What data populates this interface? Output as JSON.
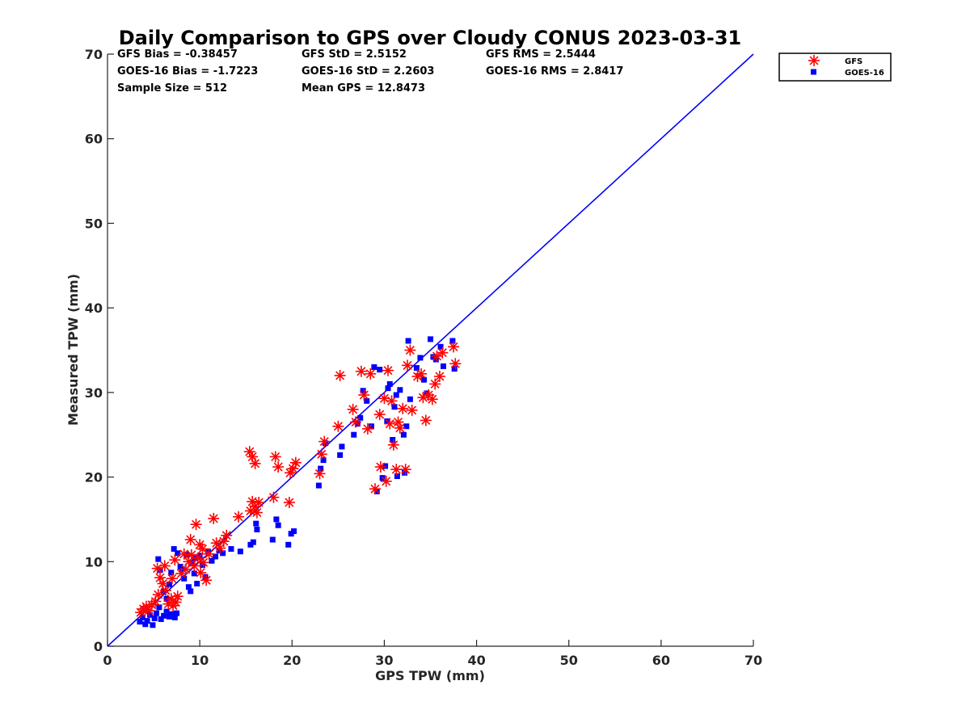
{
  "chart_data": {
    "type": "scatter",
    "title": "Daily Comparison to GPS over Cloudy CONUS 2023-03-31",
    "xlabel": "GPS TPW (mm)",
    "ylabel": "Measured TPW (mm)",
    "xlim": [
      0,
      70
    ],
    "ylim": [
      0,
      70
    ],
    "xticks": [
      "0",
      "10",
      "20",
      "30",
      "40",
      "50",
      "60",
      "70"
    ],
    "yticks": [
      "0",
      "10",
      "20",
      "30",
      "40",
      "50",
      "60",
      "70"
    ],
    "grid": false,
    "legend_position": "outside-top-right",
    "stats": {
      "gfs_bias": "GFS Bias = -0.38457",
      "gfs_std": "GFS StD = 2.5152",
      "gfs_rms": "GFS RMS = 2.5444",
      "goes_bias": "GOES-16 Bias = -1.7223",
      "goes_std": "GOES-16 StD = 2.2603",
      "goes_rms": "GOES-16 RMS = 2.8417",
      "sample_size": "Sample Size = 512",
      "mean_gps": "Mean GPS = 12.8473"
    },
    "reference_line": {
      "x": [
        0,
        70
      ],
      "y": [
        0,
        70
      ],
      "color": "#0000ff"
    },
    "series": [
      {
        "name": "GFS",
        "marker": "asterisk",
        "color": "#ff0000",
        "points": [
          [
            3.6,
            4.0
          ],
          [
            3.9,
            4.4
          ],
          [
            4.2,
            4.7
          ],
          [
            4.5,
            4.2
          ],
          [
            4.8,
            4.9
          ],
          [
            5.2,
            5.3
          ],
          [
            5.5,
            6.1
          ],
          [
            5.7,
            8.1
          ],
          [
            6.0,
            7.4
          ],
          [
            6.3,
            6.6
          ],
          [
            6.6,
            5.0
          ],
          [
            6.9,
            5.6
          ],
          [
            7.1,
            4.8
          ],
          [
            7.4,
            5.2
          ],
          [
            7.6,
            5.9
          ],
          [
            7.0,
            8.0
          ],
          [
            7.3,
            10.2
          ],
          [
            5.4,
            9.2
          ],
          [
            6.2,
            9.5
          ],
          [
            8.0,
            8.6
          ],
          [
            8.5,
            9.1
          ],
          [
            8.8,
            10.0
          ],
          [
            9.1,
            10.8
          ],
          [
            9.4,
            9.5
          ],
          [
            9.8,
            10.4
          ],
          [
            10.1,
            8.7
          ],
          [
            10.4,
            9.9
          ],
          [
            10.7,
            7.8
          ],
          [
            8.3,
            10.9
          ],
          [
            9.0,
            12.6
          ],
          [
            9.6,
            14.4
          ],
          [
            10.3,
            11.5
          ],
          [
            11.0,
            10.9
          ],
          [
            11.5,
            15.1
          ],
          [
            11.8,
            12.2
          ],
          [
            12.2,
            11.6
          ],
          [
            12.6,
            12.4
          ],
          [
            12.9,
            13.1
          ],
          [
            14.2,
            15.3
          ],
          [
            15.5,
            16.0
          ],
          [
            15.7,
            17.1
          ],
          [
            16.0,
            16.5
          ],
          [
            16.2,
            15.8
          ],
          [
            16.4,
            17.0
          ],
          [
            15.4,
            23.0
          ],
          [
            15.7,
            22.4
          ],
          [
            16.0,
            21.6
          ],
          [
            18.0,
            17.6
          ],
          [
            18.2,
            22.4
          ],
          [
            18.5,
            21.2
          ],
          [
            19.7,
            17.0
          ],
          [
            19.8,
            20.5
          ],
          [
            20.1,
            21.0
          ],
          [
            20.4,
            21.7
          ],
          [
            23.0,
            20.4
          ],
          [
            23.2,
            22.7
          ],
          [
            23.5,
            24.2
          ],
          [
            25.0,
            26.0
          ],
          [
            26.6,
            28.0
          ],
          [
            26.9,
            26.5
          ],
          [
            27.5,
            32.5
          ],
          [
            27.8,
            29.7
          ],
          [
            28.2,
            25.7
          ],
          [
            28.5,
            32.2
          ],
          [
            29.0,
            18.6
          ],
          [
            29.6,
            21.2
          ],
          [
            29.5,
            27.4
          ],
          [
            30.0,
            29.3
          ],
          [
            30.2,
            19.5
          ],
          [
            30.4,
            32.6
          ],
          [
            30.6,
            26.3
          ],
          [
            30.8,
            29.0
          ],
          [
            31.0,
            23.8
          ],
          [
            31.3,
            20.9
          ],
          [
            31.5,
            26.5
          ],
          [
            31.7,
            25.8
          ],
          [
            32.0,
            28.1
          ],
          [
            32.3,
            20.9
          ],
          [
            32.5,
            33.2
          ],
          [
            32.8,
            35.0
          ],
          [
            33.0,
            27.9
          ],
          [
            33.6,
            31.9
          ],
          [
            34.0,
            32.2
          ],
          [
            34.2,
            29.4
          ],
          [
            34.5,
            26.7
          ],
          [
            34.8,
            29.7
          ],
          [
            35.2,
            29.2
          ],
          [
            35.5,
            31.0
          ],
          [
            35.7,
            34.3
          ],
          [
            36.0,
            31.9
          ],
          [
            36.3,
            34.7
          ],
          [
            37.5,
            35.4
          ],
          [
            37.7,
            33.4
          ],
          [
            25.2,
            32.0
          ],
          [
            10.0,
            12.0
          ]
        ]
      },
      {
        "name": "GOES-16",
        "marker": "square",
        "color": "#0000ff",
        "points": [
          [
            3.5,
            2.9
          ],
          [
            3.8,
            3.4
          ],
          [
            4.1,
            2.6
          ],
          [
            4.3,
            3.0
          ],
          [
            4.6,
            3.7
          ],
          [
            4.9,
            2.5
          ],
          [
            5.1,
            3.3
          ],
          [
            5.3,
            3.9
          ],
          [
            5.6,
            4.6
          ],
          [
            5.8,
            3.2
          ],
          [
            6.1,
            3.6
          ],
          [
            6.4,
            4.1
          ],
          [
            6.7,
            3.5
          ],
          [
            7.0,
            3.8
          ],
          [
            7.3,
            3.4
          ],
          [
            7.5,
            3.9
          ],
          [
            5.5,
            10.3
          ],
          [
            5.7,
            9.0
          ],
          [
            6.1,
            6.5
          ],
          [
            6.4,
            5.6
          ],
          [
            6.7,
            7.3
          ],
          [
            6.9,
            8.7
          ],
          [
            7.2,
            11.5
          ],
          [
            7.6,
            11.0
          ],
          [
            7.9,
            9.4
          ],
          [
            8.3,
            8.0
          ],
          [
            8.6,
            10.8
          ],
          [
            8.8,
            7.0
          ],
          [
            9.0,
            6.5
          ],
          [
            9.2,
            9.9
          ],
          [
            9.4,
            8.6
          ],
          [
            9.7,
            7.4
          ],
          [
            10.0,
            10.7
          ],
          [
            10.3,
            9.6
          ],
          [
            10.6,
            8.2
          ],
          [
            10.9,
            11.2
          ],
          [
            11.3,
            10.1
          ],
          [
            11.7,
            10.6
          ],
          [
            12.1,
            11.3
          ],
          [
            12.5,
            11.0
          ],
          [
            13.4,
            11.5
          ],
          [
            14.4,
            11.2
          ],
          [
            15.5,
            12.0
          ],
          [
            15.8,
            12.3
          ],
          [
            16.1,
            14.5
          ],
          [
            16.2,
            13.8
          ],
          [
            17.9,
            12.6
          ],
          [
            18.3,
            15.0
          ],
          [
            18.5,
            14.3
          ],
          [
            19.6,
            12.0
          ],
          [
            19.9,
            13.3
          ],
          [
            20.2,
            13.6
          ],
          [
            22.9,
            19.0
          ],
          [
            23.1,
            21.0
          ],
          [
            23.4,
            22.0
          ],
          [
            23.6,
            24.0
          ],
          [
            25.2,
            22.6
          ],
          [
            25.4,
            23.6
          ],
          [
            26.7,
            25.0
          ],
          [
            27.1,
            26.3
          ],
          [
            27.4,
            27.0
          ],
          [
            27.7,
            30.2
          ],
          [
            28.1,
            29.0
          ],
          [
            28.6,
            26.0
          ],
          [
            29.2,
            18.3
          ],
          [
            29.5,
            32.7
          ],
          [
            29.8,
            19.9
          ],
          [
            30.1,
            21.3
          ],
          [
            30.3,
            26.6
          ],
          [
            30.6,
            31.0
          ],
          [
            30.9,
            24.4
          ],
          [
            31.1,
            28.3
          ],
          [
            31.4,
            20.1
          ],
          [
            31.7,
            30.3
          ],
          [
            32.2,
            20.5
          ],
          [
            32.4,
            26.0
          ],
          [
            32.6,
            36.1
          ],
          [
            32.8,
            29.2
          ],
          [
            33.5,
            32.9
          ],
          [
            33.9,
            34.1
          ],
          [
            34.3,
            31.5
          ],
          [
            34.6,
            29.9
          ],
          [
            35.0,
            36.3
          ],
          [
            35.3,
            34.2
          ],
          [
            35.6,
            33.9
          ],
          [
            36.1,
            35.4
          ],
          [
            36.4,
            33.1
          ],
          [
            37.4,
            36.1
          ],
          [
            37.6,
            32.8
          ],
          [
            31.3,
            29.7
          ],
          [
            28.9,
            33.0
          ],
          [
            32.1,
            25.0
          ],
          [
            30.4,
            30.5
          ],
          [
            8.1,
            9.1
          ],
          [
            9.5,
            10.4
          ]
        ]
      }
    ]
  }
}
